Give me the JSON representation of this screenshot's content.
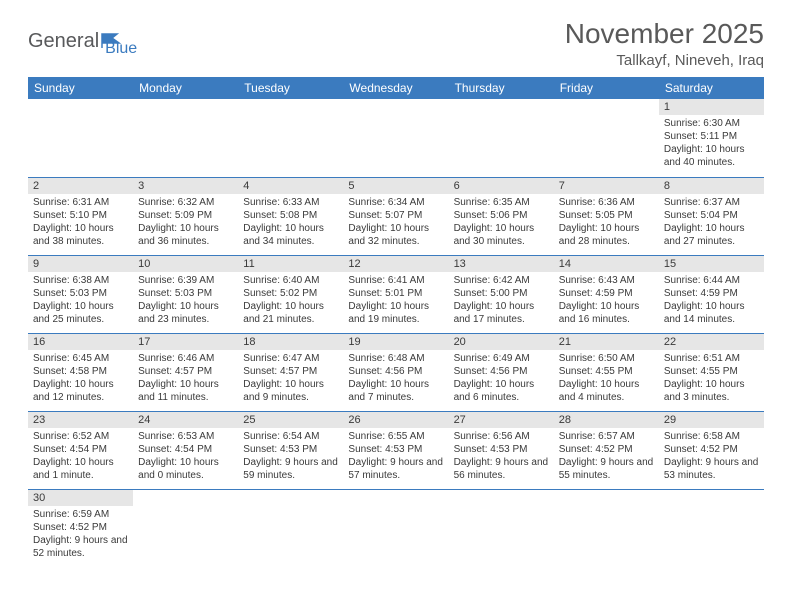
{
  "logo": {
    "text1": "General",
    "text2": "Blue"
  },
  "title": "November 2025",
  "location": "Tallkayf, Nineveh, Iraq",
  "colors": {
    "header_bg": "#3b7bbf",
    "header_text": "#ffffff",
    "daynum_bg": "#e6e6e6",
    "cell_border": "#3b7bbf",
    "text": "#3a3a3a",
    "title_text": "#595959",
    "logo_gray": "#58595b",
    "logo_blue": "#3b7bbf"
  },
  "fonts": {
    "title_size": 28,
    "location_size": 15,
    "weekday_size": 12,
    "daynum_size": 11,
    "body_size": 10
  },
  "weekdays": [
    "Sunday",
    "Monday",
    "Tuesday",
    "Wednesday",
    "Thursday",
    "Friday",
    "Saturday"
  ],
  "weeks": [
    [
      null,
      null,
      null,
      null,
      null,
      null,
      {
        "n": "1",
        "sr": "Sunrise: 6:30 AM",
        "ss": "Sunset: 5:11 PM",
        "dl": "Daylight: 10 hours and 40 minutes."
      }
    ],
    [
      {
        "n": "2",
        "sr": "Sunrise: 6:31 AM",
        "ss": "Sunset: 5:10 PM",
        "dl": "Daylight: 10 hours and 38 minutes."
      },
      {
        "n": "3",
        "sr": "Sunrise: 6:32 AM",
        "ss": "Sunset: 5:09 PM",
        "dl": "Daylight: 10 hours and 36 minutes."
      },
      {
        "n": "4",
        "sr": "Sunrise: 6:33 AM",
        "ss": "Sunset: 5:08 PM",
        "dl": "Daylight: 10 hours and 34 minutes."
      },
      {
        "n": "5",
        "sr": "Sunrise: 6:34 AM",
        "ss": "Sunset: 5:07 PM",
        "dl": "Daylight: 10 hours and 32 minutes."
      },
      {
        "n": "6",
        "sr": "Sunrise: 6:35 AM",
        "ss": "Sunset: 5:06 PM",
        "dl": "Daylight: 10 hours and 30 minutes."
      },
      {
        "n": "7",
        "sr": "Sunrise: 6:36 AM",
        "ss": "Sunset: 5:05 PM",
        "dl": "Daylight: 10 hours and 28 minutes."
      },
      {
        "n": "8",
        "sr": "Sunrise: 6:37 AM",
        "ss": "Sunset: 5:04 PM",
        "dl": "Daylight: 10 hours and 27 minutes."
      }
    ],
    [
      {
        "n": "9",
        "sr": "Sunrise: 6:38 AM",
        "ss": "Sunset: 5:03 PM",
        "dl": "Daylight: 10 hours and 25 minutes."
      },
      {
        "n": "10",
        "sr": "Sunrise: 6:39 AM",
        "ss": "Sunset: 5:03 PM",
        "dl": "Daylight: 10 hours and 23 minutes."
      },
      {
        "n": "11",
        "sr": "Sunrise: 6:40 AM",
        "ss": "Sunset: 5:02 PM",
        "dl": "Daylight: 10 hours and 21 minutes."
      },
      {
        "n": "12",
        "sr": "Sunrise: 6:41 AM",
        "ss": "Sunset: 5:01 PM",
        "dl": "Daylight: 10 hours and 19 minutes."
      },
      {
        "n": "13",
        "sr": "Sunrise: 6:42 AM",
        "ss": "Sunset: 5:00 PM",
        "dl": "Daylight: 10 hours and 17 minutes."
      },
      {
        "n": "14",
        "sr": "Sunrise: 6:43 AM",
        "ss": "Sunset: 4:59 PM",
        "dl": "Daylight: 10 hours and 16 minutes."
      },
      {
        "n": "15",
        "sr": "Sunrise: 6:44 AM",
        "ss": "Sunset: 4:59 PM",
        "dl": "Daylight: 10 hours and 14 minutes."
      }
    ],
    [
      {
        "n": "16",
        "sr": "Sunrise: 6:45 AM",
        "ss": "Sunset: 4:58 PM",
        "dl": "Daylight: 10 hours and 12 minutes."
      },
      {
        "n": "17",
        "sr": "Sunrise: 6:46 AM",
        "ss": "Sunset: 4:57 PM",
        "dl": "Daylight: 10 hours and 11 minutes."
      },
      {
        "n": "18",
        "sr": "Sunrise: 6:47 AM",
        "ss": "Sunset: 4:57 PM",
        "dl": "Daylight: 10 hours and 9 minutes."
      },
      {
        "n": "19",
        "sr": "Sunrise: 6:48 AM",
        "ss": "Sunset: 4:56 PM",
        "dl": "Daylight: 10 hours and 7 minutes."
      },
      {
        "n": "20",
        "sr": "Sunrise: 6:49 AM",
        "ss": "Sunset: 4:56 PM",
        "dl": "Daylight: 10 hours and 6 minutes."
      },
      {
        "n": "21",
        "sr": "Sunrise: 6:50 AM",
        "ss": "Sunset: 4:55 PM",
        "dl": "Daylight: 10 hours and 4 minutes."
      },
      {
        "n": "22",
        "sr": "Sunrise: 6:51 AM",
        "ss": "Sunset: 4:55 PM",
        "dl": "Daylight: 10 hours and 3 minutes."
      }
    ],
    [
      {
        "n": "23",
        "sr": "Sunrise: 6:52 AM",
        "ss": "Sunset: 4:54 PM",
        "dl": "Daylight: 10 hours and 1 minute."
      },
      {
        "n": "24",
        "sr": "Sunrise: 6:53 AM",
        "ss": "Sunset: 4:54 PM",
        "dl": "Daylight: 10 hours and 0 minutes."
      },
      {
        "n": "25",
        "sr": "Sunrise: 6:54 AM",
        "ss": "Sunset: 4:53 PM",
        "dl": "Daylight: 9 hours and 59 minutes."
      },
      {
        "n": "26",
        "sr": "Sunrise: 6:55 AM",
        "ss": "Sunset: 4:53 PM",
        "dl": "Daylight: 9 hours and 57 minutes."
      },
      {
        "n": "27",
        "sr": "Sunrise: 6:56 AM",
        "ss": "Sunset: 4:53 PM",
        "dl": "Daylight: 9 hours and 56 minutes."
      },
      {
        "n": "28",
        "sr": "Sunrise: 6:57 AM",
        "ss": "Sunset: 4:52 PM",
        "dl": "Daylight: 9 hours and 55 minutes."
      },
      {
        "n": "29",
        "sr": "Sunrise: 6:58 AM",
        "ss": "Sunset: 4:52 PM",
        "dl": "Daylight: 9 hours and 53 minutes."
      }
    ],
    [
      {
        "n": "30",
        "sr": "Sunrise: 6:59 AM",
        "ss": "Sunset: 4:52 PM",
        "dl": "Daylight: 9 hours and 52 minutes."
      },
      null,
      null,
      null,
      null,
      null,
      null
    ]
  ]
}
